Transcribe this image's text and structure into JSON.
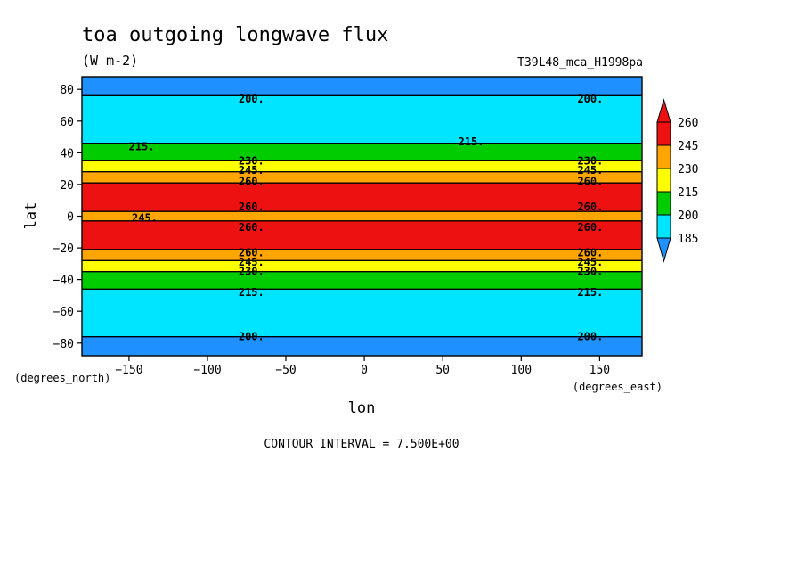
{
  "chart_data": {
    "type": "heatmap",
    "title": "toa outgoing longwave flux",
    "subtitle": "(W m-2)",
    "run_label": "T39L48_mca_H1998pa",
    "xlabel": "lon",
    "ylabel": "lat",
    "x_unit": "(degrees_east)",
    "y_unit": "(degrees_north)",
    "xlim": [
      -180,
      177
    ],
    "ylim": [
      -88,
      88
    ],
    "x_ticks": [
      -150,
      -100,
      -50,
      0,
      50,
      100,
      150
    ],
    "y_ticks": [
      80,
      60,
      40,
      20,
      0,
      -20,
      -40,
      -60,
      -80
    ],
    "contour_interval_text": "CONTOUR INTERVAL = 7.500E+00",
    "colorbar": {
      "levels": [
        185,
        200,
        215,
        230,
        245,
        260
      ],
      "colors": [
        "#1e90ff",
        "#00e5ff",
        "#00cc00",
        "#ffff00",
        "#ffa500",
        "#ee1111"
      ]
    },
    "latitude_bands": [
      {
        "lat": [
          76,
          88
        ],
        "range": "185-200"
      },
      {
        "lat": [
          46,
          76
        ],
        "range": "200-215"
      },
      {
        "lat": [
          35,
          46
        ],
        "range": "215-230"
      },
      {
        "lat": [
          28,
          35
        ],
        "range": "230-245"
      },
      {
        "lat": [
          21,
          28
        ],
        "range": "245-260"
      },
      {
        "lat": [
          3,
          21
        ],
        "range": ">260"
      },
      {
        "lat": [
          -3,
          3
        ],
        "range": "245-260"
      },
      {
        "lat": [
          -21,
          -3
        ],
        "range": ">260"
      },
      {
        "lat": [
          -28,
          -21
        ],
        "range": "245-260"
      },
      {
        "lat": [
          -35,
          -28
        ],
        "range": "230-245"
      },
      {
        "lat": [
          -46,
          -35
        ],
        "range": "215-230"
      },
      {
        "lat": [
          -76,
          -46
        ],
        "range": "200-215"
      },
      {
        "lat": [
          -88,
          -76
        ],
        "range": "185-200"
      }
    ],
    "contour_labels": [
      {
        "text": "200.",
        "lon": -72,
        "lat": 74
      },
      {
        "text": "200.",
        "lon": 144,
        "lat": 74
      },
      {
        "text": "215.",
        "lon": -142,
        "lat": 44
      },
      {
        "text": "215.",
        "lon": 68,
        "lat": 47
      },
      {
        "text": "230.",
        "lon": -72,
        "lat": 35
      },
      {
        "text": "245.",
        "lon": -72,
        "lat": 29
      },
      {
        "text": "260.",
        "lon": -72,
        "lat": 22
      },
      {
        "text": "230.",
        "lon": 144,
        "lat": 35
      },
      {
        "text": "245.",
        "lon": 144,
        "lat": 29
      },
      {
        "text": "260.",
        "lon": 144,
        "lat": 22
      },
      {
        "text": "260.",
        "lon": -72,
        "lat": 6
      },
      {
        "text": "245.",
        "lon": -140,
        "lat": -1
      },
      {
        "text": "260.",
        "lon": -72,
        "lat": -7
      },
      {
        "text": "260.",
        "lon": 144,
        "lat": 6
      },
      {
        "text": "260.",
        "lon": 144,
        "lat": -7
      },
      {
        "text": "260.",
        "lon": -72,
        "lat": -23
      },
      {
        "text": "245.",
        "lon": -72,
        "lat": -29
      },
      {
        "text": "230.",
        "lon": -72,
        "lat": -35
      },
      {
        "text": "260.",
        "lon": 144,
        "lat": -23
      },
      {
        "text": "245.",
        "lon": 144,
        "lat": -29
      },
      {
        "text": "230.",
        "lon": 144,
        "lat": -35
      },
      {
        "text": "215.",
        "lon": -72,
        "lat": -48
      },
      {
        "text": "215.",
        "lon": 144,
        "lat": -48
      },
      {
        "text": "200.",
        "lon": -72,
        "lat": -76
      },
      {
        "text": "200.",
        "lon": 144,
        "lat": -76
      }
    ]
  }
}
